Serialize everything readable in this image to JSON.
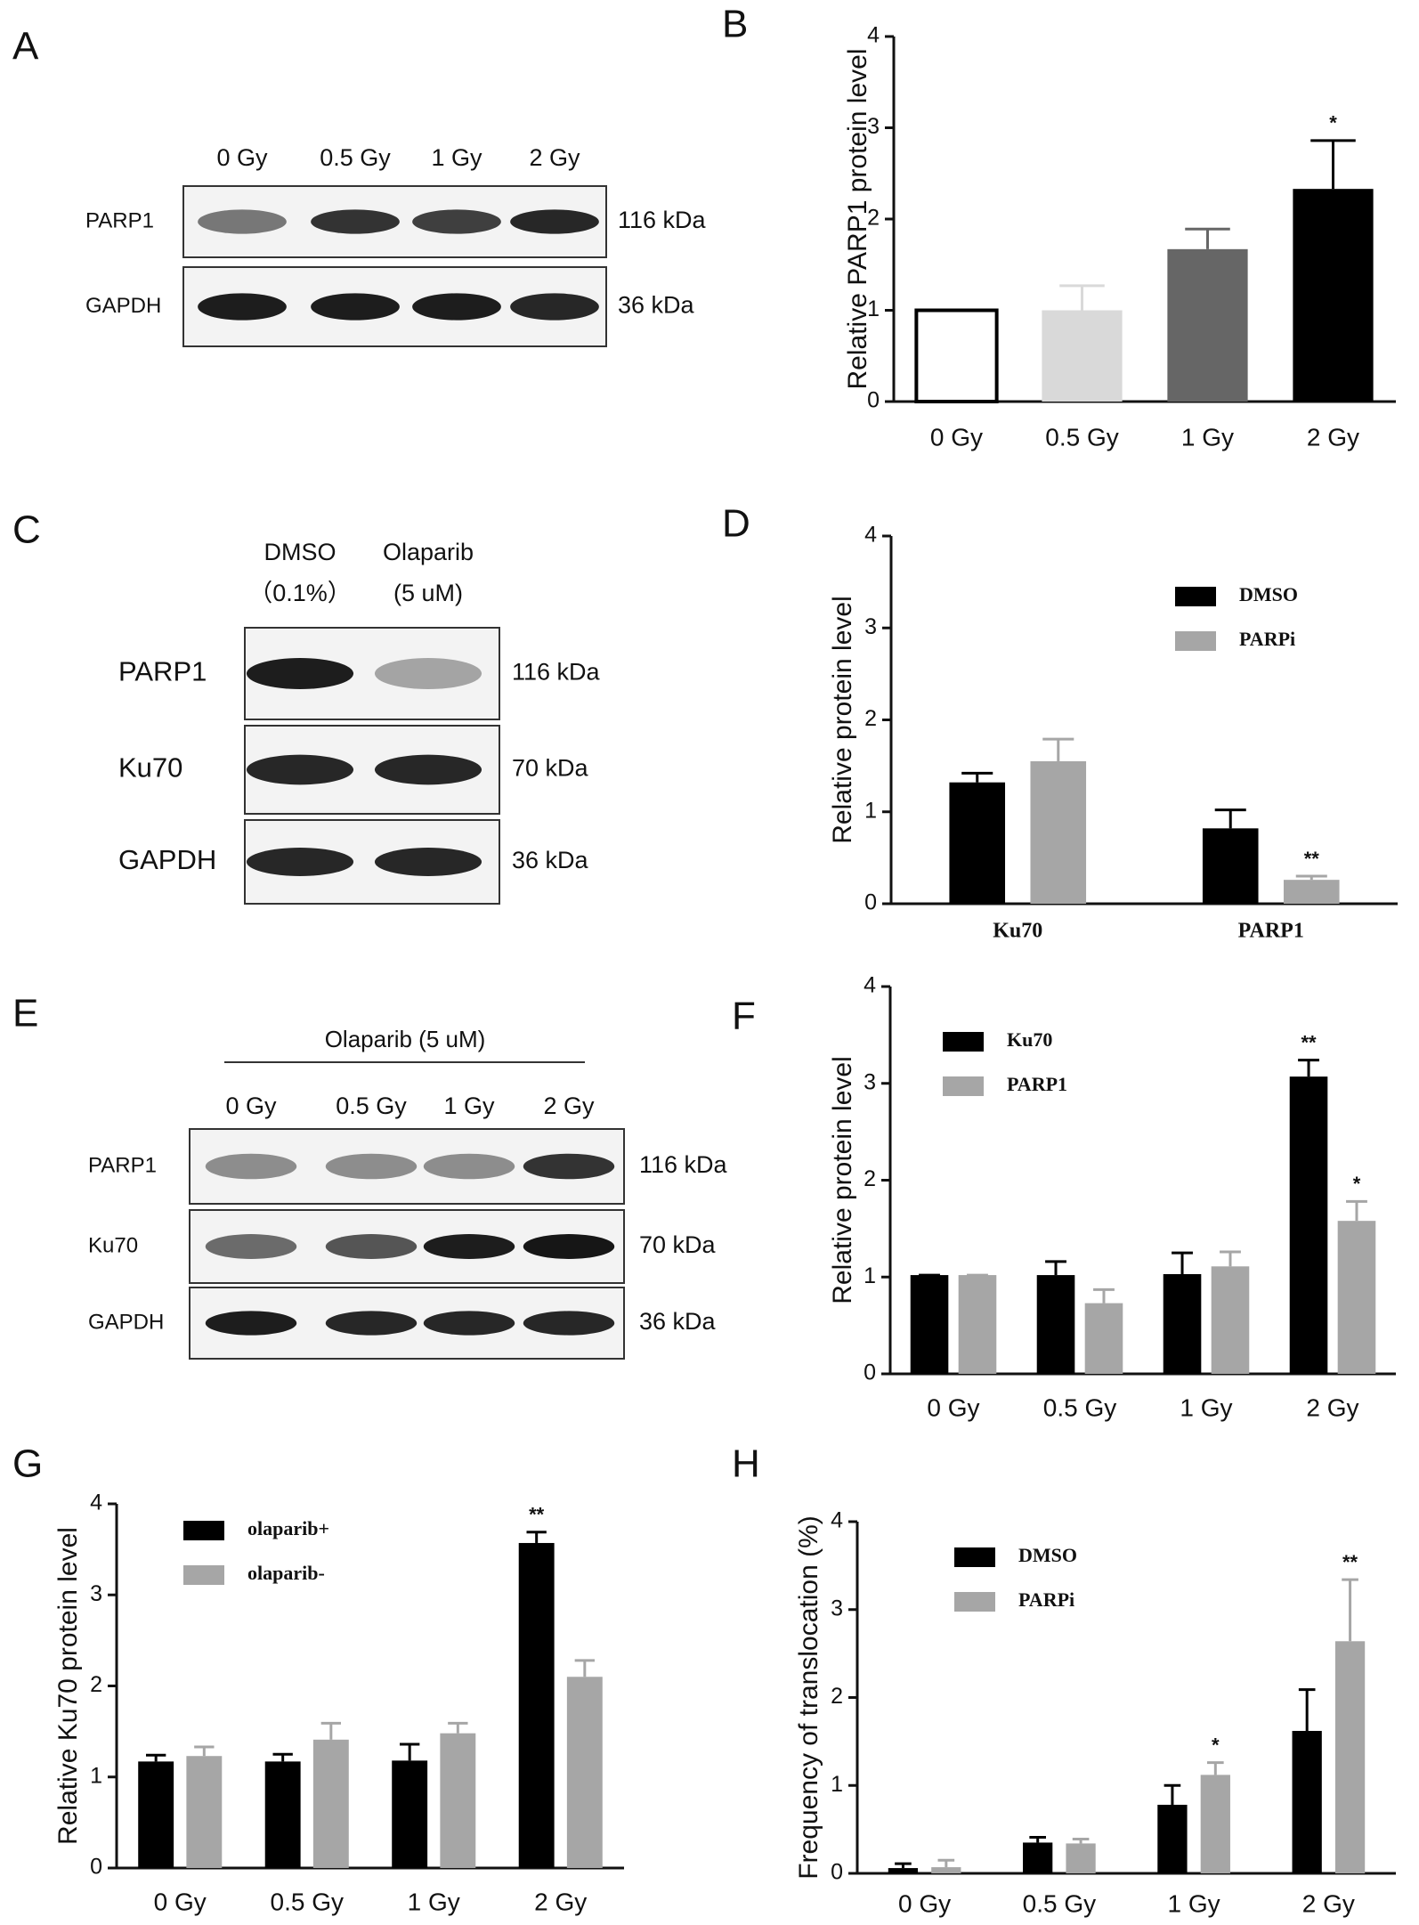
{
  "blots": [
    {
      "label": "A",
      "lanes": [
        [
          "0 Gy"
        ],
        [
          "0.5 Gy"
        ],
        [
          "1 Gy"
        ],
        [
          "2 Gy"
        ]
      ],
      "rows": [
        {
          "name": "PARP1",
          "size": "116 kDa"
        },
        {
          "name": "GAPDH",
          "size": "36 kDa"
        }
      ]
    },
    {
      "label": "C",
      "lanes": [
        [
          "DMSO",
          "（0.1%）"
        ],
        [
          "Olaparib",
          "(5 uM)"
        ]
      ],
      "rows": [
        {
          "name": "PARP1",
          "size": "116 kDa"
        },
        {
          "name": "Ku70",
          "size": "70 kDa"
        },
        {
          "name": "GAPDH",
          "size": "36 kDa"
        }
      ]
    },
    {
      "label": "E",
      "header": "Olaparib (5 uM)",
      "lanes": [
        [
          "0 Gy"
        ],
        [
          "0.5 Gy"
        ],
        [
          "1 Gy"
        ],
        [
          "2 Gy"
        ]
      ],
      "rows": [
        {
          "name": "PARP1",
          "size": "116 kDa"
        },
        {
          "name": "Ku70",
          "size": "70 kDa"
        },
        {
          "name": "GAPDH",
          "size": "36 kDa"
        }
      ]
    }
  ],
  "chart_data": [
    {
      "label": "B",
      "type": "bar",
      "ylabel": "Relative PARP1 protein level",
      "categories": [
        "0 Gy",
        "0.5 Gy",
        "1 Gy",
        "2 Gy"
      ],
      "values": [
        1,
        1,
        1.67,
        2.33
      ],
      "errors": [
        0,
        0.27,
        0.22,
        0.53
      ],
      "colors": [
        "#ffffff",
        "#d9d9d9",
        "#666666",
        "#000000"
      ],
      "significance": [
        null,
        null,
        null,
        "*"
      ],
      "ylim": [
        0,
        4
      ],
      "yticks": [
        0,
        1,
        2,
        3,
        4
      ]
    },
    {
      "label": "D",
      "type": "bar",
      "ylabel": "Relative protein level",
      "categories": [
        "Ku70",
        "PARP1"
      ],
      "series": [
        {
          "name": "DMSO",
          "color": "#000000",
          "values": [
            1.32,
            0.82
          ],
          "errors": [
            0.1,
            0.2
          ],
          "significance": [
            null,
            null
          ]
        },
        {
          "name": "PARPi",
          "color": "#a6a6a6",
          "values": [
            1.55,
            0.26
          ],
          "errors": [
            0.24,
            0.04
          ],
          "significance": [
            null,
            "**"
          ]
        }
      ],
      "ylim": [
        0,
        4
      ],
      "yticks": [
        0,
        1,
        2,
        3,
        4
      ]
    },
    {
      "label": "F",
      "type": "bar",
      "ylabel": "Relative protein level",
      "categories": [
        "0 Gy",
        "0.5 Gy",
        "1 Gy",
        "2 Gy"
      ],
      "series": [
        {
          "name": "Ku70",
          "color": "#000000",
          "values": [
            1.02,
            1.02,
            1.03,
            3.07
          ],
          "errors": [
            0,
            0.14,
            0.22,
            0.17
          ],
          "significance": [
            null,
            null,
            null,
            "**"
          ]
        },
        {
          "name": "PARP1",
          "color": "#a6a6a6",
          "values": [
            1.02,
            0.73,
            1.11,
            1.58
          ],
          "errors": [
            0,
            0.14,
            0.15,
            0.2
          ],
          "significance": [
            null,
            null,
            null,
            "*"
          ]
        }
      ],
      "ylim": [
        0,
        4
      ],
      "yticks": [
        0,
        1,
        2,
        3,
        4
      ]
    },
    {
      "label": "G",
      "type": "bar",
      "ylabel": "Relative Ku70 protein level",
      "categories": [
        "0 Gy",
        "0.5 Gy",
        "1 Gy",
        "2 Gy"
      ],
      "series": [
        {
          "name": "olaparib+",
          "color": "#000000",
          "values": [
            1.17,
            1.17,
            1.18,
            3.57
          ],
          "errors": [
            0.07,
            0.08,
            0.18,
            0.12
          ],
          "significance": [
            null,
            null,
            null,
            "**"
          ]
        },
        {
          "name": "olaparib-",
          "color": "#a6a6a6",
          "values": [
            1.23,
            1.41,
            1.48,
            2.1
          ],
          "errors": [
            0.1,
            0.18,
            0.11,
            0.18
          ],
          "significance": [
            null,
            null,
            null,
            null
          ]
        }
      ],
      "ylim": [
        0,
        4
      ],
      "yticks": [
        0,
        1,
        2,
        3,
        4
      ]
    },
    {
      "label": "H",
      "type": "bar",
      "ylabel": "Frequency of translocation (%)",
      "categories": [
        "0 Gy",
        "0.5 Gy",
        "1 Gy",
        "2 Gy"
      ],
      "series": [
        {
          "name": "DMSO",
          "color": "#000000",
          "values": [
            0.06,
            0.35,
            0.78,
            1.62
          ],
          "errors": [
            0.05,
            0.06,
            0.22,
            0.47
          ],
          "significance": [
            null,
            null,
            null,
            null
          ]
        },
        {
          "name": "PARPi",
          "color": "#a6a6a6",
          "values": [
            0.07,
            0.34,
            1.12,
            2.64
          ],
          "errors": [
            0.08,
            0.05,
            0.14,
            0.7
          ],
          "significance": [
            null,
            null,
            "*",
            "**"
          ]
        }
      ],
      "ylim": [
        0,
        4
      ],
      "yticks": [
        0,
        1,
        2,
        3,
        4
      ]
    }
  ]
}
